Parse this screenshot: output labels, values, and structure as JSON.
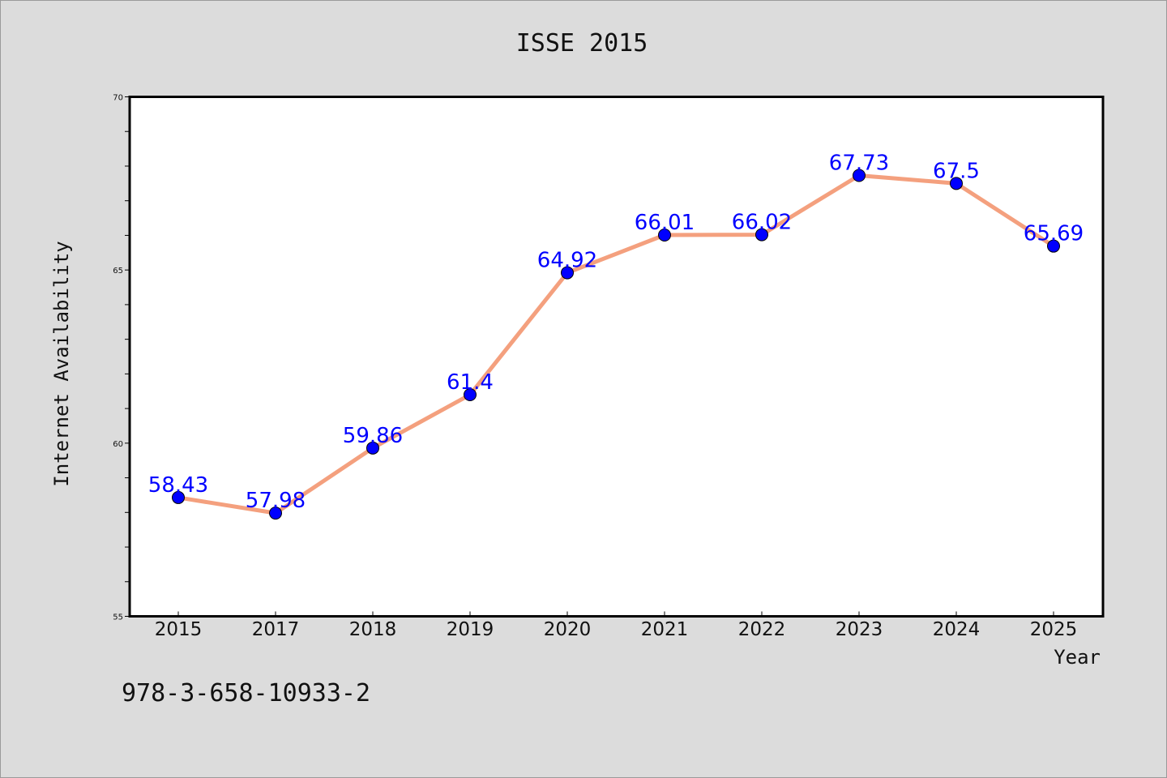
{
  "chart_data": {
    "type": "line",
    "title": "ISSE 2015",
    "xlabel": "Year",
    "ylabel": "Internet Availability",
    "categories": [
      "2015",
      "2017",
      "2018",
      "2019",
      "2020",
      "2021",
      "2022",
      "2023",
      "2024",
      "2025"
    ],
    "series": [
      {
        "values": [
          58.43,
          57.98,
          59.86,
          61.4,
          64.92,
          66.01,
          66.02,
          67.73,
          67.5,
          65.69
        ],
        "data_labels": [
          "58.43",
          "57.98",
          "59.86",
          "61.4",
          "64.92",
          "66.01",
          "66.02",
          "67.73",
          "67.5",
          "65.69"
        ],
        "line_color": "#f4a07e",
        "marker_color": "#0000ff"
      }
    ],
    "ylim": [
      55,
      70
    ],
    "yticks": [
      "55",
      "60",
      "65",
      "70"
    ],
    "grid": false,
    "legend": "none"
  },
  "footer_text": "978-3-658-10933-2"
}
